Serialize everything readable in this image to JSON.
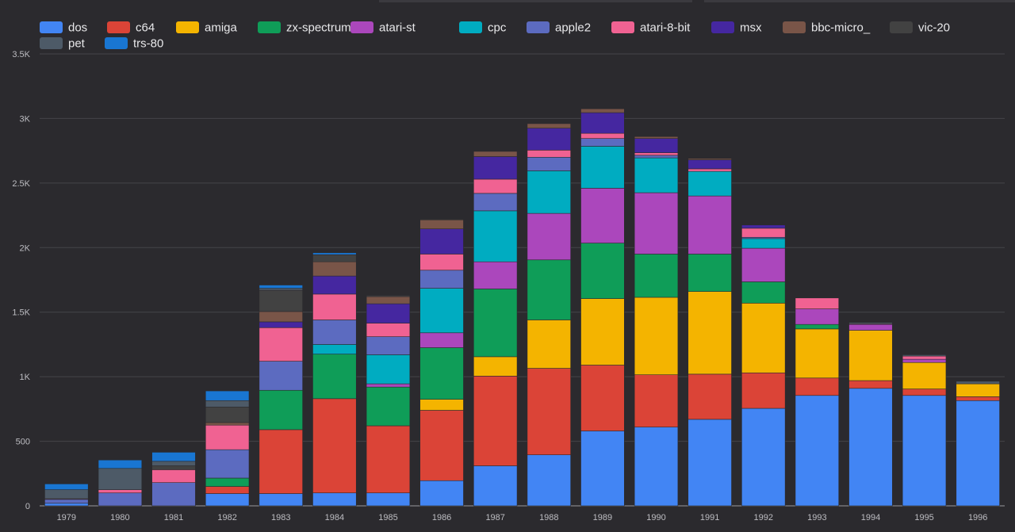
{
  "chart_data": {
    "type": "bar",
    "stacked": true,
    "categories": [
      "1979",
      "1980",
      "1981",
      "1982",
      "1983",
      "1984",
      "1985",
      "1986",
      "1987",
      "1988",
      "1989",
      "1990",
      "1991",
      "1992",
      "1993",
      "1994",
      "1995",
      "1996"
    ],
    "ylim": [
      0,
      3500
    ],
    "yticks": [
      0,
      500,
      1000,
      1500,
      2000,
      2500,
      3000,
      3500
    ],
    "ytick_labels": [
      "0",
      "500",
      "1K",
      "1.5K",
      "2K",
      "2.5K",
      "3K",
      "3.5K"
    ],
    "grid": true,
    "legend": "top-left",
    "series": [
      {
        "name": "dos",
        "color": "#4285f4",
        "values": [
          20,
          0,
          0,
          95,
          95,
          100,
          100,
          195,
          310,
          395,
          580,
          610,
          670,
          755,
          855,
          910,
          855,
          815
        ]
      },
      {
        "name": "c64",
        "color": "#db4437",
        "values": [
          0,
          0,
          0,
          55,
          495,
          730,
          520,
          545,
          695,
          670,
          510,
          405,
          350,
          275,
          135,
          60,
          50,
          30
        ]
      },
      {
        "name": "amiga",
        "color": "#f4b400",
        "values": [
          0,
          0,
          0,
          0,
          0,
          0,
          0,
          85,
          150,
          375,
          515,
          600,
          640,
          540,
          380,
          390,
          205,
          100
        ]
      },
      {
        "name": "zx-spectrum",
        "color": "#0f9d58",
        "values": [
          0,
          0,
          0,
          65,
          305,
          345,
          300,
          400,
          525,
          465,
          430,
          335,
          290,
          165,
          35,
          0,
          0,
          0
        ]
      },
      {
        "name": "atari-st",
        "color": "#ab47bc",
        "values": [
          0,
          0,
          0,
          0,
          0,
          0,
          25,
          115,
          210,
          360,
          425,
          475,
          450,
          260,
          120,
          45,
          25,
          0
        ]
      },
      {
        "name": "cpc",
        "color": "#00acc1",
        "values": [
          0,
          0,
          0,
          0,
          0,
          75,
          225,
          345,
          395,
          330,
          325,
          270,
          190,
          75,
          0,
          0,
          0,
          0
        ]
      },
      {
        "name": "apple2",
        "color": "#5c6bc0",
        "values": [
          30,
          100,
          180,
          220,
          225,
          190,
          140,
          140,
          135,
          105,
          60,
          20,
          0,
          10,
          0,
          0,
          0,
          0
        ]
      },
      {
        "name": "atari-8-bit",
        "color": "#f06292",
        "values": [
          5,
          25,
          100,
          190,
          260,
          200,
          105,
          125,
          110,
          55,
          40,
          20,
          20,
          70,
          85,
          5,
          25,
          0
        ]
      },
      {
        "name": "msx",
        "color": "#4527a0",
        "values": [
          0,
          0,
          0,
          0,
          45,
          140,
          150,
          195,
          175,
          170,
          160,
          110,
          70,
          25,
          0,
          0,
          0,
          0
        ]
      },
      {
        "name": "bbc-micro_",
        "color": "#795548",
        "values": [
          0,
          0,
          0,
          20,
          80,
          110,
          55,
          70,
          40,
          35,
          30,
          15,
          10,
          0,
          0,
          0,
          0,
          0
        ]
      },
      {
        "name": "vic-20",
        "color": "#424242",
        "values": [
          0,
          0,
          30,
          120,
          165,
          55,
          10,
          5,
          0,
          0,
          0,
          0,
          0,
          0,
          0,
          0,
          0,
          0
        ]
      },
      {
        "name": "pet",
        "color": "#4d5a67",
        "values": [
          70,
          165,
          35,
          50,
          15,
          0,
          0,
          0,
          0,
          0,
          0,
          0,
          0,
          0,
          0,
          10,
          10,
          20
        ]
      },
      {
        "name": "trs-80",
        "color": "#1976d2",
        "values": [
          45,
          65,
          70,
          75,
          25,
          15,
          0,
          0,
          0,
          0,
          0,
          0,
          0,
          0,
          0,
          0,
          0,
          0
        ]
      }
    ]
  }
}
